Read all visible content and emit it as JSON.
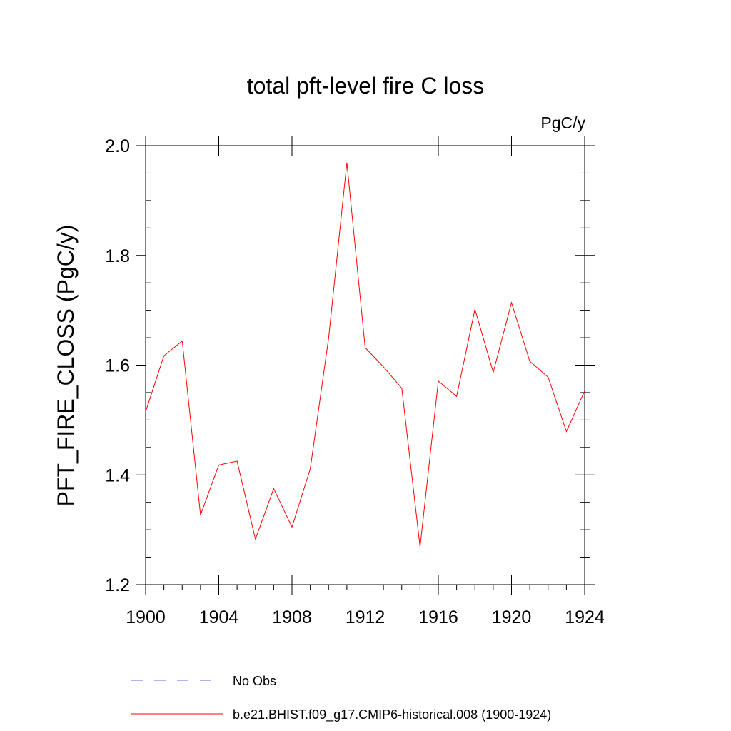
{
  "chart_data": {
    "type": "line",
    "title": "total pft-level fire C loss",
    "units_label": "PgC/y",
    "ylabel": "PFT_FIRE_CLOSS  (PgC/y)",
    "xlabel": "",
    "xlim": [
      1900,
      1924
    ],
    "ylim": [
      1.2,
      2.0
    ],
    "x_ticks": [
      1900,
      1904,
      1908,
      1912,
      1916,
      1920,
      1924
    ],
    "x_tick_labels": [
      "1900",
      "1904",
      "1908",
      "1912",
      "1916",
      "1920",
      "1924"
    ],
    "y_ticks": [
      1.2,
      1.4,
      1.6,
      1.8,
      2.0
    ],
    "y_tick_labels": [
      "1.2",
      "1.4",
      "1.6",
      "1.8",
      "2.0"
    ],
    "grid": false,
    "legend_position": "bottom",
    "series": [
      {
        "name": "b.e21.BHIST.f09_g17.CMIP6-historical.008 (1900-1924)",
        "color": "#ff0000",
        "style": "solid",
        "x": [
          1900,
          1901,
          1902,
          1903,
          1904,
          1905,
          1906,
          1907,
          1908,
          1909,
          1910,
          1911,
          1912,
          1913,
          1914,
          1915,
          1916,
          1917,
          1918,
          1919,
          1920,
          1921,
          1922,
          1923,
          1924
        ],
        "values": [
          1.515,
          1.617,
          1.644,
          1.327,
          1.418,
          1.425,
          1.283,
          1.375,
          1.305,
          1.411,
          1.649,
          1.969,
          1.632,
          1.597,
          1.558,
          1.269,
          1.571,
          1.543,
          1.702,
          1.587,
          1.714,
          1.607,
          1.578,
          1.479,
          1.553
        ]
      }
    ],
    "legend": [
      {
        "label": "No Obs",
        "color": "#6a6ad8",
        "style": "dashed"
      },
      {
        "label": "b.e21.BHIST.f09_g17.CMIP6-historical.008 (1900-1924)",
        "color": "#ff0000",
        "style": "solid"
      }
    ]
  }
}
